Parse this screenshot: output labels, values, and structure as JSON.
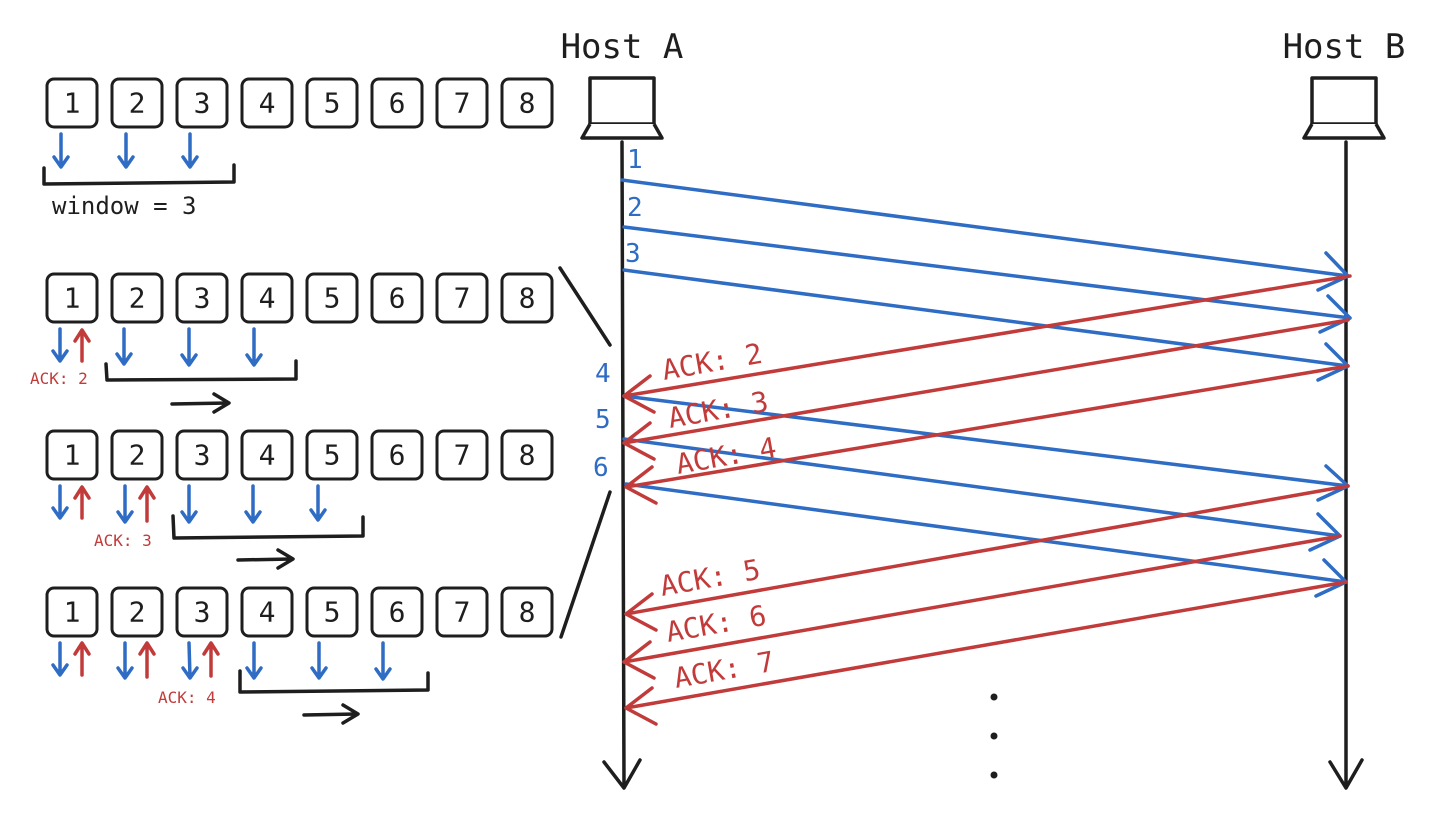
{
  "hosts": {
    "a": "Host A",
    "b": "Host B"
  },
  "window_label": "window = 3",
  "rows": [
    {
      "boxes": [
        "1",
        "2",
        "3",
        "4",
        "5",
        "6",
        "7",
        "8"
      ],
      "ack": ""
    },
    {
      "boxes": [
        "1",
        "2",
        "3",
        "4",
        "5",
        "6",
        "7",
        "8"
      ],
      "ack": "ACK: 2"
    },
    {
      "boxes": [
        "1",
        "2",
        "3",
        "4",
        "5",
        "6",
        "7",
        "8"
      ],
      "ack": "ACK: 3"
    },
    {
      "boxes": [
        "1",
        "2",
        "3",
        "4",
        "5",
        "6",
        "7",
        "8"
      ],
      "ack": "ACK: 4"
    }
  ],
  "sequence_numbers": [
    "1",
    "2",
    "3",
    "4",
    "5",
    "6"
  ],
  "acks": [
    "ACK: 2",
    "ACK: 3",
    "ACK: 4",
    "ACK: 5",
    "ACK: 6",
    "ACK: 7"
  ],
  "colors": {
    "data": "#2f6cc4",
    "ack": "#c23b3b",
    "ink": "#1e1e1e"
  }
}
